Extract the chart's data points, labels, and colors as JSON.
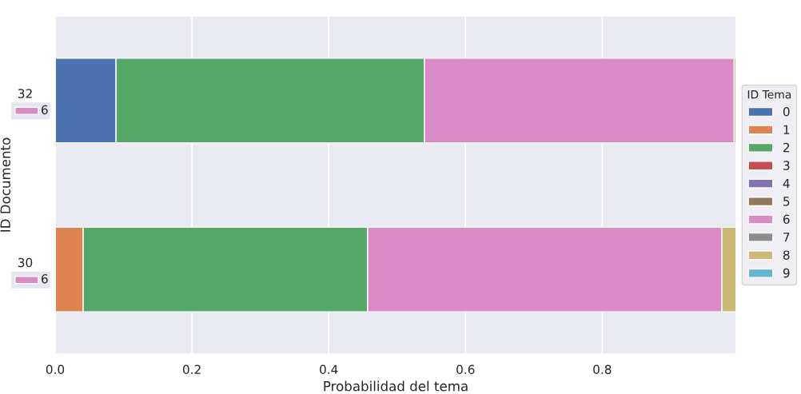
{
  "chart_data": {
    "type": "bar",
    "orientation": "horizontal",
    "stacked": true,
    "xlabel": "Probabilidad del tema",
    "ylabel": "ID Documento",
    "legend_title": "ID Tema",
    "categories": [
      "32",
      "30"
    ],
    "series": [
      {
        "name": "0",
        "color": "#4c72b0",
        "values": [
          0.089,
          0
        ]
      },
      {
        "name": "1",
        "color": "#dd8452",
        "values": [
          0,
          0.041
        ]
      },
      {
        "name": "2",
        "color": "#55a868",
        "values": [
          0.451,
          0.416
        ]
      },
      {
        "name": "3",
        "color": "#c44e52",
        "values": [
          0,
          0
        ]
      },
      {
        "name": "4",
        "color": "#8172b3",
        "values": [
          0,
          0
        ]
      },
      {
        "name": "5",
        "color": "#937860",
        "values": [
          0,
          0
        ]
      },
      {
        "name": "6",
        "color": "#da8bc3",
        "values": [
          0.453,
          0.518
        ]
      },
      {
        "name": "7",
        "color": "#8c8c8c",
        "values": [
          0,
          0
        ]
      },
      {
        "name": "8",
        "color": "#ccb974",
        "values": [
          0.003,
          0.021
        ]
      },
      {
        "name": "9",
        "color": "#64b5cd",
        "values": [
          0,
          0
        ]
      }
    ],
    "annotations": [
      "6",
      "6"
    ],
    "xlim": [
      0,
      0.996
    ],
    "xticks": [
      {
        "value": 0,
        "label": "0.0"
      },
      0.2,
      0.4,
      0.6,
      0.8
    ],
    "grid": "x",
    "legend": "right"
  }
}
